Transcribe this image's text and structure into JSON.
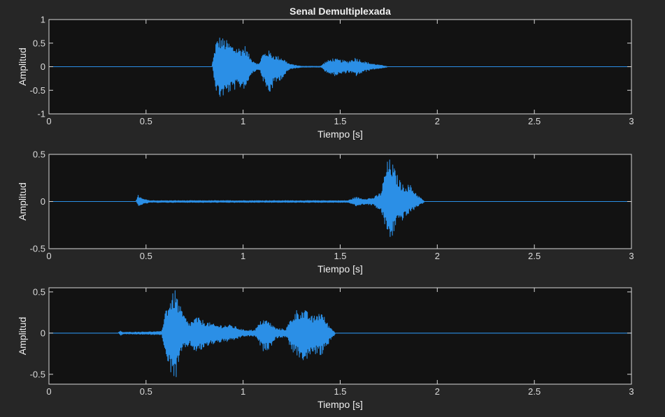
{
  "chart_data": [
    {
      "type": "line",
      "title": "Senal Demultiplexada",
      "xlabel": "Tiempo [s]",
      "ylabel": "Amplitud",
      "xlim": [
        0,
        3
      ],
      "ylim": [
        -1,
        1
      ],
      "xticks": [
        0,
        0.5,
        1,
        1.5,
        2,
        2.5,
        3
      ],
      "xtick_labels": [
        "0",
        "0.5",
        "1",
        "1.5",
        "2",
        "2.5",
        "3"
      ],
      "yticks": [
        -1,
        -0.5,
        0,
        0.5,
        1
      ],
      "ytick_labels": [
        "-1",
        "-0.5",
        "0",
        "0.5",
        "1"
      ],
      "grid": false,
      "line_color": "#2b8fe6",
      "series": [
        {
          "envelope": [
            {
              "t": 0.84,
              "max": 0.02,
              "min": -0.02
            },
            {
              "t": 0.86,
              "max": 0.55,
              "min": -0.55
            },
            {
              "t": 0.88,
              "max": 0.65,
              "min": -0.68
            },
            {
              "t": 0.91,
              "max": 0.58,
              "min": -0.6
            },
            {
              "t": 0.95,
              "max": 0.45,
              "min": -0.5
            },
            {
              "t": 0.99,
              "max": 0.4,
              "min": -0.45
            },
            {
              "t": 1.01,
              "max": 0.45,
              "min": -0.48
            },
            {
              "t": 1.04,
              "max": 0.18,
              "min": -0.15
            },
            {
              "t": 1.08,
              "max": 0.05,
              "min": -0.05
            },
            {
              "t": 1.1,
              "max": 0.28,
              "min": -0.3
            },
            {
              "t": 1.13,
              "max": 0.35,
              "min": -0.62
            },
            {
              "t": 1.16,
              "max": 0.25,
              "min": -0.38
            },
            {
              "t": 1.2,
              "max": 0.2,
              "min": -0.25
            },
            {
              "t": 1.24,
              "max": 0.06,
              "min": -0.05
            },
            {
              "t": 1.3,
              "max": 0.01,
              "min": -0.01
            },
            {
              "t": 1.4,
              "max": 0.01,
              "min": -0.01
            },
            {
              "t": 1.42,
              "max": 0.1,
              "min": -0.1
            },
            {
              "t": 1.46,
              "max": 0.18,
              "min": -0.2
            },
            {
              "t": 1.5,
              "max": 0.15,
              "min": -0.17
            },
            {
              "t": 1.54,
              "max": 0.12,
              "min": -0.12
            },
            {
              "t": 1.58,
              "max": 0.2,
              "min": -0.2
            },
            {
              "t": 1.62,
              "max": 0.12,
              "min": -0.12
            },
            {
              "t": 1.66,
              "max": 0.07,
              "min": -0.06
            },
            {
              "t": 1.7,
              "max": 0.04,
              "min": -0.04
            },
            {
              "t": 1.74,
              "max": 0.01,
              "min": -0.01
            }
          ]
        }
      ]
    },
    {
      "type": "line",
      "title": "",
      "xlabel": "Tiempo [s]",
      "ylabel": "Amplitud",
      "xlim": [
        0,
        3
      ],
      "ylim": [
        -0.5,
        0.5
      ],
      "xticks": [
        0,
        0.5,
        1,
        1.5,
        2,
        2.5,
        3
      ],
      "xtick_labels": [
        "0",
        "0.5",
        "1",
        "1.5",
        "2",
        "2.5",
        "3"
      ],
      "yticks": [
        -0.5,
        0,
        0.5
      ],
      "ytick_labels": [
        "-0.5",
        "0",
        "0.5"
      ],
      "grid": false,
      "line_color": "#2b8fe6",
      "series": [
        {
          "envelope": [
            {
              "t": 0.45,
              "max": 0.01,
              "min": -0.01
            },
            {
              "t": 0.46,
              "max": 0.07,
              "min": -0.06
            },
            {
              "t": 0.48,
              "max": 0.03,
              "min": -0.03
            },
            {
              "t": 0.52,
              "max": 0.01,
              "min": -0.01
            },
            {
              "t": 1.54,
              "max": 0.01,
              "min": -0.01
            },
            {
              "t": 1.58,
              "max": 0.05,
              "min": -0.05
            },
            {
              "t": 1.62,
              "max": 0.03,
              "min": -0.03
            },
            {
              "t": 1.67,
              "max": 0.04,
              "min": -0.04
            },
            {
              "t": 1.71,
              "max": 0.1,
              "min": -0.12
            },
            {
              "t": 1.74,
              "max": 0.42,
              "min": -0.35
            },
            {
              "t": 1.76,
              "max": 0.46,
              "min": -0.43
            },
            {
              "t": 1.79,
              "max": 0.3,
              "min": -0.22
            },
            {
              "t": 1.82,
              "max": 0.18,
              "min": -0.2
            },
            {
              "t": 1.86,
              "max": 0.18,
              "min": -0.12
            },
            {
              "t": 1.9,
              "max": 0.07,
              "min": -0.05
            },
            {
              "t": 1.93,
              "max": 0.01,
              "min": -0.01
            }
          ]
        }
      ]
    },
    {
      "type": "line",
      "title": "",
      "xlabel": "Tiempo [s]",
      "ylabel": "Amplitud",
      "xlim": [
        0,
        3
      ],
      "ylim": [
        -0.62,
        0.55
      ],
      "xticks": [
        0,
        0.5,
        1,
        1.5,
        2,
        2.5,
        3
      ],
      "xtick_labels": [
        "0",
        "0.5",
        "1",
        "1.5",
        "2",
        "2.5",
        "3"
      ],
      "yticks": [
        -0.5,
        0,
        0.5
      ],
      "ytick_labels": [
        "-0.5",
        "0",
        "0.5"
      ],
      "grid": false,
      "line_color": "#2b8fe6",
      "series": [
        {
          "envelope": [
            {
              "t": 0.36,
              "max": 0.01,
              "min": -0.01
            },
            {
              "t": 0.37,
              "max": 0.03,
              "min": -0.03
            },
            {
              "t": 0.38,
              "max": 0.01,
              "min": -0.01
            },
            {
              "t": 0.58,
              "max": 0.02,
              "min": -0.02
            },
            {
              "t": 0.6,
              "max": 0.3,
              "min": -0.35
            },
            {
              "t": 0.63,
              "max": 0.45,
              "min": -0.5
            },
            {
              "t": 0.65,
              "max": 0.53,
              "min": -0.6
            },
            {
              "t": 0.68,
              "max": 0.3,
              "min": -0.25
            },
            {
              "t": 0.72,
              "max": 0.12,
              "min": -0.15
            },
            {
              "t": 0.76,
              "max": 0.2,
              "min": -0.25
            },
            {
              "t": 0.8,
              "max": 0.15,
              "min": -0.18
            },
            {
              "t": 0.86,
              "max": 0.1,
              "min": -0.12
            },
            {
              "t": 0.94,
              "max": 0.1,
              "min": -0.1
            },
            {
              "t": 1.0,
              "max": 0.04,
              "min": -0.04
            },
            {
              "t": 1.06,
              "max": 0.04,
              "min": -0.04
            },
            {
              "t": 1.1,
              "max": 0.18,
              "min": -0.22
            },
            {
              "t": 1.13,
              "max": 0.15,
              "min": -0.2
            },
            {
              "t": 1.17,
              "max": 0.06,
              "min": -0.06
            },
            {
              "t": 1.22,
              "max": 0.05,
              "min": -0.05
            },
            {
              "t": 1.25,
              "max": 0.2,
              "min": -0.22
            },
            {
              "t": 1.28,
              "max": 0.3,
              "min": -0.3
            },
            {
              "t": 1.32,
              "max": 0.28,
              "min": -0.35
            },
            {
              "t": 1.36,
              "max": 0.2,
              "min": -0.25
            },
            {
              "t": 1.4,
              "max": 0.28,
              "min": -0.28
            },
            {
              "t": 1.44,
              "max": 0.1,
              "min": -0.12
            },
            {
              "t": 1.47,
              "max": 0.02,
              "min": -0.02
            }
          ]
        }
      ]
    }
  ]
}
